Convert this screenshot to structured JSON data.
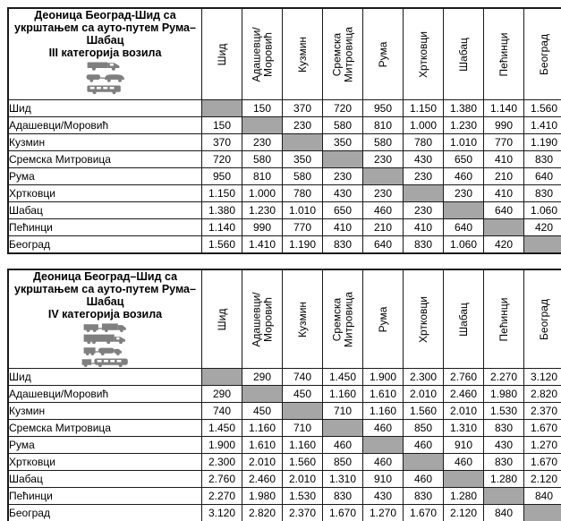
{
  "colors": {
    "diagonal_fill": "#a6a6a6",
    "icon_gray": "#7f7f7f",
    "border": "#1a1a1a",
    "background": "#ffffff"
  },
  "tables": [
    {
      "title": "Деоница Београд-Шид са\nукрштањем са ауто-путем Рума–\nШабац\nIII категорија возила",
      "category": "III",
      "icons": [
        "van-icon",
        "car-caravan-icon",
        "minibus-icon"
      ],
      "columns": [
        "Шид",
        "Адашевци/\nМоровић",
        "Кузмин",
        "Сремска\nМитровица",
        "Рума",
        "Хртковци",
        "Шабац",
        "Пећинци",
        "Београд"
      ],
      "rows": [
        {
          "label": "Шид",
          "values": [
            "",
            "150",
            "370",
            "720",
            "950",
            "1.150",
            "1.380",
            "1.140",
            "1.560"
          ]
        },
        {
          "label": "Адашевци/Моровић",
          "values": [
            "150",
            "",
            "230",
            "580",
            "810",
            "1.000",
            "1.230",
            "990",
            "1.410"
          ]
        },
        {
          "label": "Кузмин",
          "values": [
            "370",
            "230",
            "",
            "350",
            "580",
            "780",
            "1.010",
            "770",
            "1.190"
          ]
        },
        {
          "label": "Сремска Митровица",
          "values": [
            "720",
            "580",
            "350",
            "",
            "230",
            "430",
            "650",
            "410",
            "830"
          ]
        },
        {
          "label": "Рума",
          "values": [
            "950",
            "810",
            "580",
            "230",
            "",
            "230",
            "460",
            "210",
            "640"
          ]
        },
        {
          "label": "Хртковци",
          "values": [
            "1.150",
            "1.000",
            "780",
            "430",
            "230",
            "",
            "230",
            "410",
            "830"
          ]
        },
        {
          "label": "Шабац",
          "values": [
            "1.380",
            "1.230",
            "1.010",
            "650",
            "460",
            "230",
            "",
            "640",
            "1.060"
          ]
        },
        {
          "label": "Пећинци",
          "values": [
            "1.140",
            "990",
            "770",
            "410",
            "210",
            "410",
            "640",
            "",
            "420"
          ]
        },
        {
          "label": "Београд",
          "values": [
            "1.560",
            "1.410",
            "1.190",
            "830",
            "640",
            "830",
            "1.060",
            "420",
            ""
          ]
        }
      ]
    },
    {
      "title": "Деоница Београд–Шид са\nукрштањем са ауто-путем Рума–\nШабац\nIV категорија возила",
      "category": "IV",
      "icons": [
        "truck-trailer-icon",
        "box-truck-icon",
        "truck-tanker-icon",
        "bus-trailer-icon"
      ],
      "columns": [
        "Шид",
        "Адашевци/\nМоровић",
        "Кузмин",
        "Сремска\nМитровица",
        "Рума",
        "Хртковци",
        "Шабац",
        "Пећинци",
        "Београд"
      ],
      "rows": [
        {
          "label": "Шид",
          "values": [
            "",
            "290",
            "740",
            "1.450",
            "1.900",
            "2.300",
            "2.760",
            "2.270",
            "3.120"
          ]
        },
        {
          "label": "Адашевци/Моровић",
          "values": [
            "290",
            "",
            "450",
            "1.160",
            "1.610",
            "2.010",
            "2.460",
            "1.980",
            "2.820"
          ]
        },
        {
          "label": "Кузмин",
          "values": [
            "740",
            "450",
            "",
            "710",
            "1.160",
            "1.560",
            "2.010",
            "1.530",
            "2.370"
          ]
        },
        {
          "label": "Сремска Митровица",
          "values": [
            "1.450",
            "1.160",
            "710",
            "",
            "460",
            "850",
            "1.310",
            "830",
            "1.670"
          ]
        },
        {
          "label": "Рума",
          "values": [
            "1.900",
            "1.610",
            "1.160",
            "460",
            "",
            "460",
            "910",
            "430",
            "1.270"
          ]
        },
        {
          "label": "Хртковци",
          "values": [
            "2.300",
            "2.010",
            "1.560",
            "850",
            "460",
            "",
            "460",
            "830",
            "1.670"
          ]
        },
        {
          "label": "Шабац",
          "values": [
            "2.760",
            "2.460",
            "2.010",
            "1.310",
            "910",
            "460",
            "",
            "1.280",
            "2.120"
          ]
        },
        {
          "label": "Пећинци",
          "values": [
            "2.270",
            "1.980",
            "1.530",
            "830",
            "430",
            "830",
            "1.280",
            "",
            "840"
          ]
        },
        {
          "label": "Београд",
          "values": [
            "3.120",
            "2.820",
            "2.370",
            "1.670",
            "1.270",
            "1.670",
            "2.120",
            "840",
            ""
          ]
        }
      ]
    }
  ]
}
